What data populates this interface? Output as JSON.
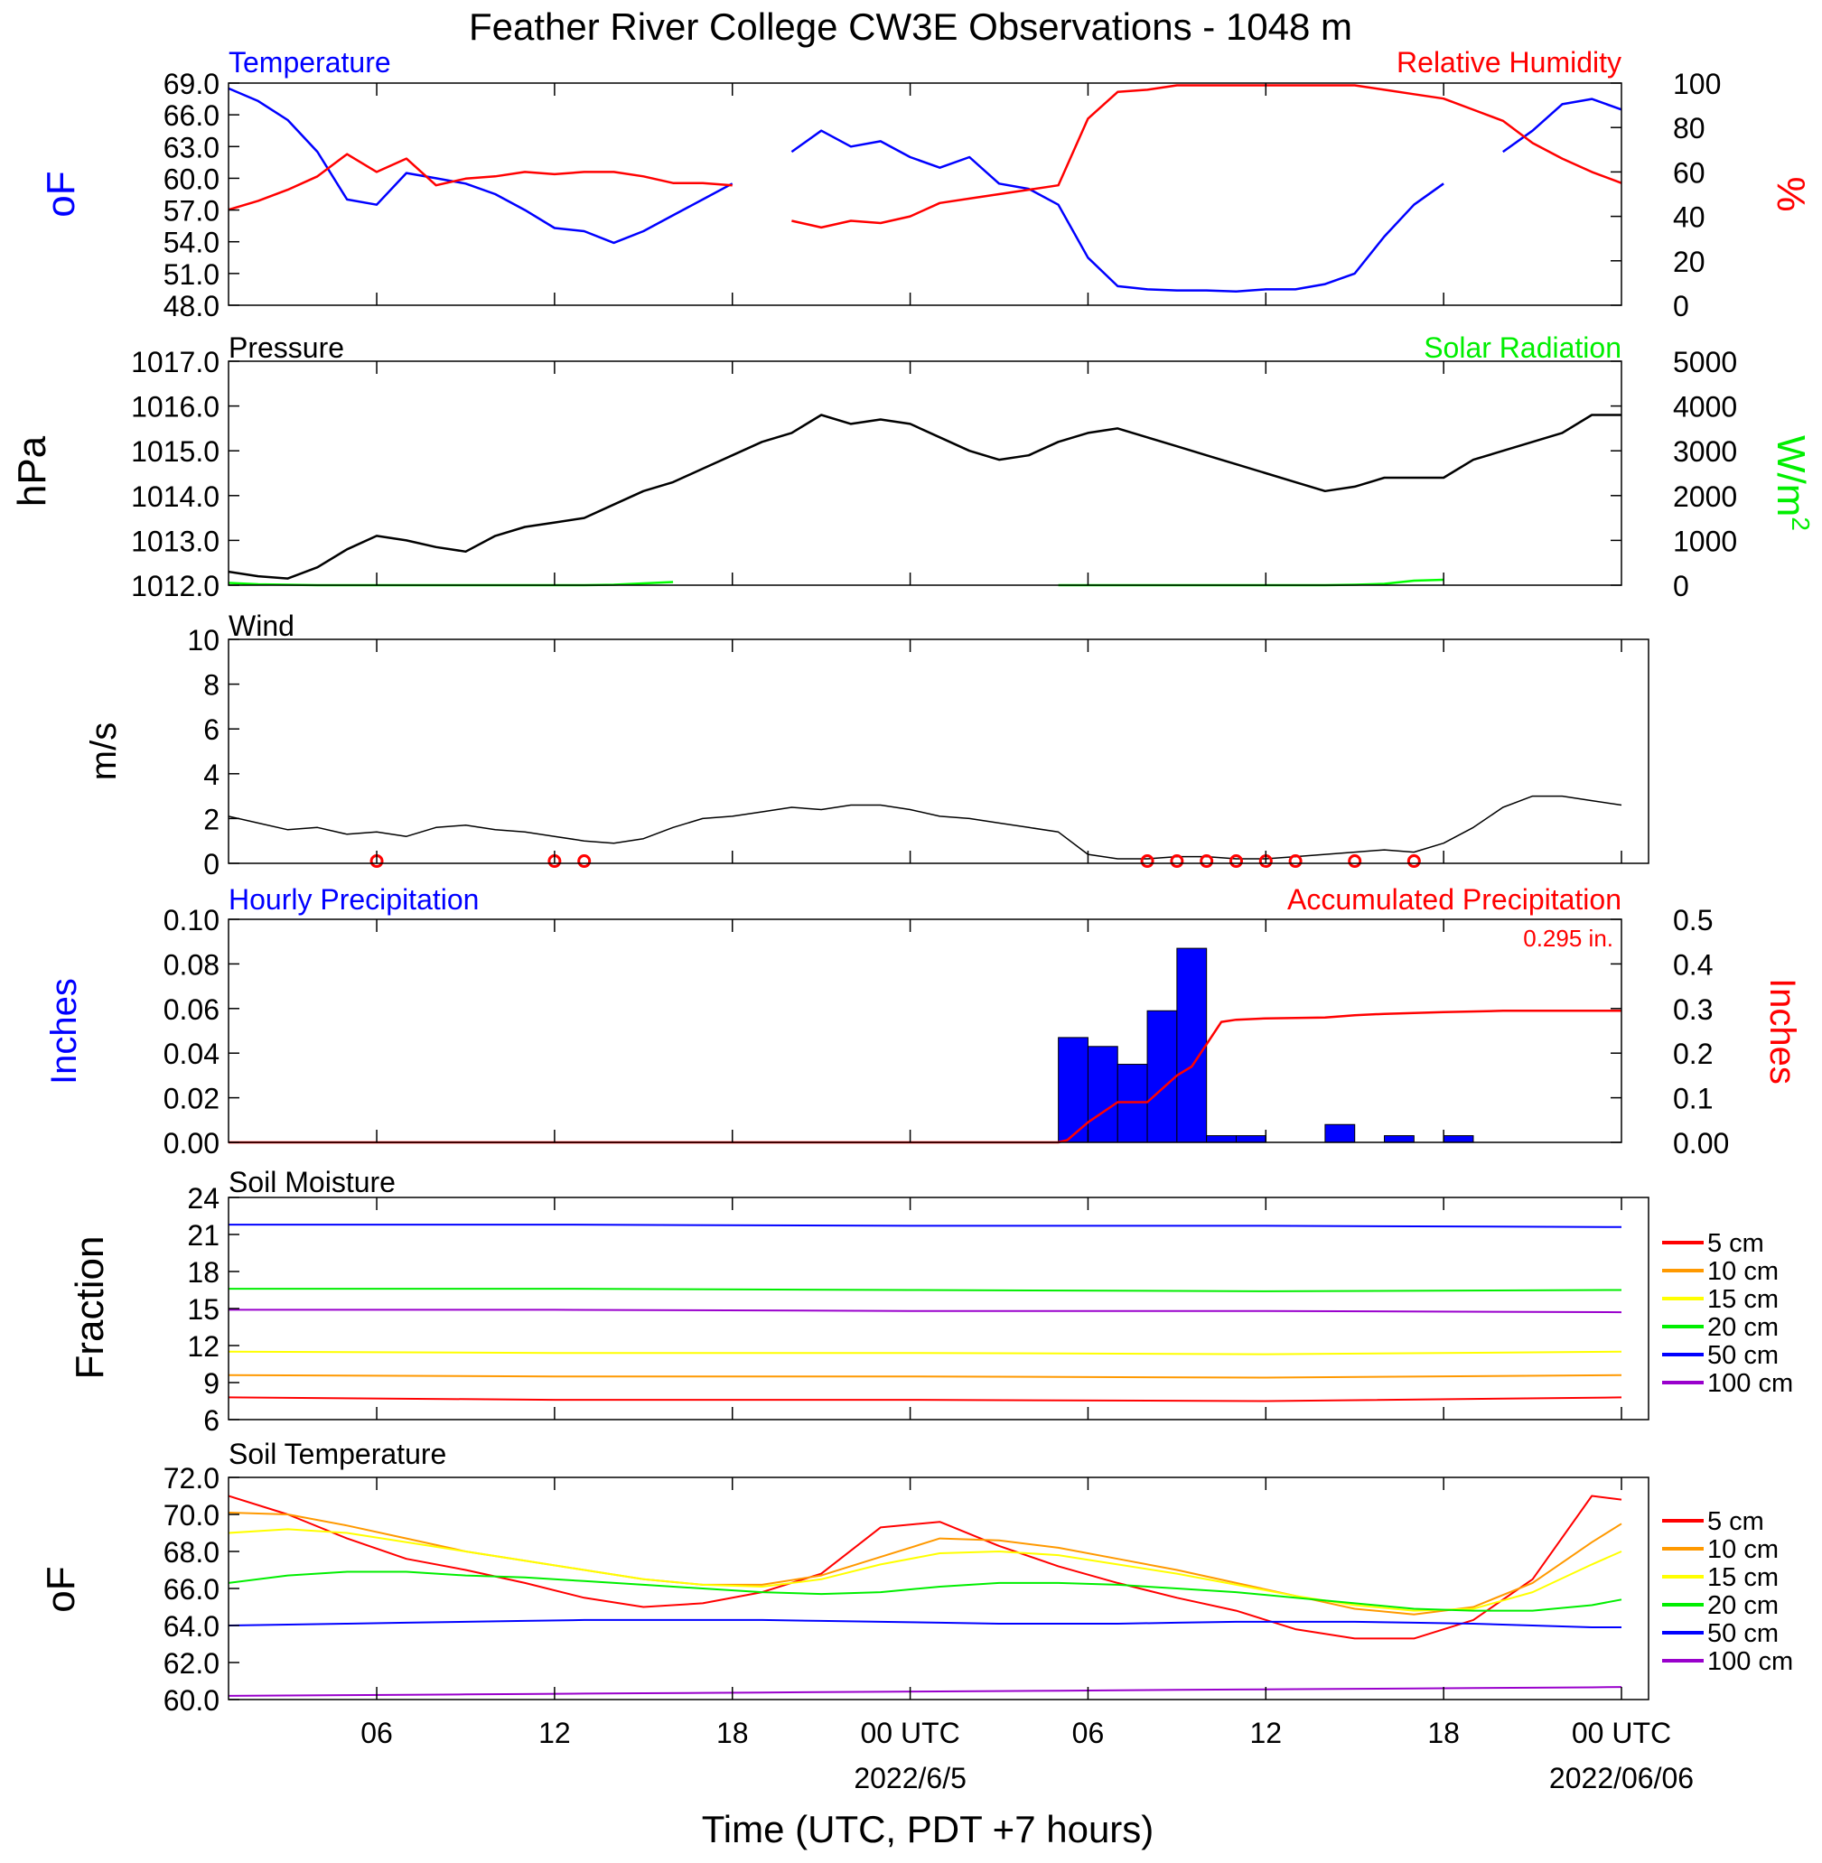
{
  "page_title": "Feather River College CW3E Observations - 1048 m",
  "x_axis": {
    "tick_labels": [
      "06",
      "12",
      "18",
      "00 UTC",
      "06",
      "12",
      "18",
      "00 UTC"
    ],
    "date_labels": [
      "2022/6/5",
      "2022/06/06"
    ],
    "title": "Time (UTC, PDT +7 hours)"
  },
  "colors": {
    "temperature": "#0000ff",
    "humidity": "#ff0000",
    "pressure": "#000000",
    "solar": "#00ff00",
    "wind": "#000000",
    "barb": "#ff0000",
    "precip_bar": "#0000ff",
    "accum": "#ff0000"
  },
  "panels": {
    "temp_rh": {
      "left_title": "Temperature",
      "right_title": "Relative Humidity",
      "left_unit": "oF",
      "right_unit": "%",
      "left_ticks": [
        "69.0",
        "66.0",
        "63.0",
        "60.0",
        "57.0",
        "54.0",
        "51.0",
        "48.0"
      ],
      "right_ticks": [
        "100",
        "80",
        "60",
        "40",
        "20",
        "0"
      ]
    },
    "pressure": {
      "left_title": "Pressure",
      "right_title": "Solar Radiation",
      "left_unit": "hPa",
      "right_unit": "W/m2",
      "left_ticks": [
        "1017.0",
        "1016.0",
        "1015.0",
        "1014.0",
        "1013.0",
        "1012.0"
      ],
      "right_ticks": [
        "5000",
        "4000",
        "3000",
        "2000",
        "1000",
        "0"
      ]
    },
    "wind": {
      "left_title": "Wind",
      "left_unit": "m/s",
      "left_ticks": [
        "10",
        "8",
        "6",
        "4",
        "2",
        "0"
      ]
    },
    "precip": {
      "left_title": "Hourly Precipitation",
      "right_title": "Accumulated Precipitation",
      "total_label": "0.295 in.",
      "left_unit": "Inches",
      "right_unit": "Inches",
      "left_ticks": [
        "0.10",
        "0.08",
        "0.06",
        "0.04",
        "0.02",
        "0.00"
      ],
      "right_ticks": [
        "0.5",
        "0.4",
        "0.3",
        "0.2",
        "0.1",
        "0.00"
      ]
    },
    "soil_moisture": {
      "left_title": "Soil Moisture",
      "left_unit": "Fraction",
      "left_ticks": [
        "24",
        "21",
        "18",
        "15",
        "12",
        "9",
        "6"
      ]
    },
    "soil_temp": {
      "left_title": "Soil Temperature",
      "left_unit": "oF",
      "left_ticks": [
        "72.0",
        "70.0",
        "68.0",
        "66.0",
        "64.0",
        "62.0",
        "60.0"
      ]
    }
  },
  "legend_depths": [
    {
      "label": "5 cm",
      "color": "#ff0000"
    },
    {
      "label": "10 cm",
      "color": "#ff9900"
    },
    {
      "label": "15 cm",
      "color": "#ffff00"
    },
    {
      "label": "20 cm",
      "color": "#00ee00"
    },
    {
      "label": "50 cm",
      "color": "#0000ff"
    },
    {
      "label": "100 cm",
      "color": "#9900cc"
    }
  ],
  "chart_data": [
    {
      "type": "line",
      "name": "temp_rh",
      "x_hours_utc": [
        1,
        2,
        3,
        4,
        5,
        6,
        7,
        8,
        9,
        10,
        11,
        12,
        13,
        14,
        15,
        16,
        17,
        18,
        19,
        20,
        21,
        22,
        23,
        24,
        25,
        26,
        27,
        28,
        29,
        30,
        31,
        32,
        33,
        34,
        35,
        36,
        37,
        38,
        39,
        40,
        41,
        42,
        43,
        44,
        45,
        46,
        47,
        48
      ],
      "series": [
        {
          "name": "Temperature",
          "axis": "left",
          "ylim": [
            48,
            69
          ],
          "values": [
            68.5,
            67.3,
            65.5,
            62.5,
            58.0,
            57.5,
            60.5,
            60.0,
            59.5,
            58.5,
            57.0,
            55.3,
            55.0,
            53.9,
            55.0,
            56.5,
            58.0,
            59.5,
            null,
            62.5,
            64.5,
            63.0,
            63.5,
            62.0,
            61.0,
            62.0,
            59.5,
            59.0,
            57.5,
            52.5,
            49.8,
            49.5,
            49.4,
            49.4,
            49.3,
            49.5,
            49.5,
            50.0,
            51.0,
            54.5,
            57.5,
            59.5,
            null,
            62.5,
            64.5,
            67.0,
            67.5,
            66.5
          ]
        },
        {
          "name": "Relative Humidity",
          "axis": "right",
          "ylim": [
            0,
            100
          ],
          "values": [
            43,
            47,
            52,
            58,
            68,
            60,
            66,
            54,
            57,
            58,
            60,
            59,
            60,
            60,
            58,
            55,
            55,
            54,
            null,
            38,
            35,
            38,
            37,
            40,
            46,
            48,
            50,
            52,
            54,
            84,
            96,
            97,
            99,
            99,
            99,
            99,
            99,
            99,
            99,
            97,
            95,
            93,
            88,
            83,
            73,
            66,
            60,
            55
          ]
        }
      ]
    },
    {
      "type": "line",
      "name": "pressure",
      "x_hours_utc": [
        1,
        2,
        3,
        4,
        5,
        6,
        7,
        8,
        9,
        10,
        11,
        12,
        13,
        14,
        15,
        16,
        17,
        18,
        19,
        20,
        21,
        22,
        23,
        24,
        25,
        26,
        27,
        28,
        29,
        30,
        31,
        32,
        33,
        34,
        35,
        36,
        37,
        38,
        39,
        40,
        41,
        42,
        43,
        44,
        45,
        46,
        47,
        48
      ],
      "series": [
        {
          "name": "Pressure",
          "axis": "left",
          "ylim": [
            1012,
            1017
          ],
          "values": [
            1012.3,
            1012.2,
            1012.15,
            1012.4,
            1012.8,
            1013.1,
            1013.0,
            1012.85,
            1012.75,
            1013.1,
            1013.3,
            1013.4,
            1013.5,
            1013.8,
            1014.1,
            1014.3,
            1014.6,
            1014.9,
            1015.2,
            1015.4,
            1015.8,
            1015.6,
            1015.7,
            1015.6,
            1015.3,
            1015.0,
            1014.8,
            1014.9,
            1015.2,
            1015.4,
            1015.5,
            1015.3,
            1015.1,
            1014.9,
            1014.7,
            1014.5,
            1014.3,
            1014.1,
            1014.2,
            1014.4,
            1014.4,
            1014.4,
            1014.8,
            1015.0,
            1015.2,
            1015.4,
            1015.8,
            1015.8
          ]
        },
        {
          "name": "Solar Radiation",
          "axis": "right",
          "ylim": [
            0,
            5000
          ],
          "values": [
            50,
            20,
            10,
            0,
            0,
            0,
            0,
            0,
            0,
            0,
            0,
            0,
            0,
            10,
            40,
            70,
            null,
            null,
            null,
            null,
            null,
            null,
            null,
            null,
            null,
            null,
            null,
            null,
            0,
            0,
            0,
            0,
            0,
            0,
            0,
            0,
            0,
            0,
            10,
            30,
            100,
            120,
            null,
            null,
            null,
            null,
            null,
            null
          ]
        }
      ]
    },
    {
      "type": "line",
      "name": "wind",
      "ylim": [
        0,
        10
      ],
      "x_hours_utc": [
        1,
        2,
        3,
        4,
        5,
        6,
        7,
        8,
        9,
        10,
        11,
        12,
        13,
        14,
        15,
        16,
        17,
        18,
        19,
        20,
        21,
        22,
        23,
        24,
        25,
        26,
        27,
        28,
        29,
        30,
        31,
        32,
        33,
        34,
        35,
        36,
        37,
        38,
        39,
        40,
        41,
        42,
        43,
        44,
        45,
        46,
        47,
        48
      ],
      "series": [
        {
          "name": "Wind speed",
          "values": [
            2.1,
            1.8,
            1.5,
            1.6,
            1.3,
            1.4,
            1.2,
            1.6,
            1.7,
            1.5,
            1.4,
            1.2,
            1.0,
            0.9,
            1.1,
            1.6,
            2.0,
            2.1,
            2.3,
            2.5,
            2.4,
            2.6,
            2.6,
            2.4,
            2.1,
            2.0,
            1.8,
            1.6,
            1.4,
            0.4,
            0.2,
            0.2,
            0.3,
            0.3,
            0.2,
            0.2,
            0.3,
            0.4,
            0.5,
            0.6,
            0.5,
            0.9,
            1.6,
            2.5,
            3.0,
            3.0,
            2.8,
            2.6
          ]
        }
      ]
    },
    {
      "type": "bar",
      "name": "precip",
      "x_hours_utc": [
        30,
        31,
        32,
        33,
        34,
        35,
        36,
        37,
        38,
        39,
        40,
        41,
        42,
        43
      ],
      "series": [
        {
          "name": "Hourly Precipitation",
          "axis": "left",
          "ylim": [
            0,
            0.1
          ],
          "values": [
            0.047,
            0.043,
            0.035,
            0.059,
            0.087,
            0.003,
            0.003,
            0,
            0,
            0.008,
            0,
            0.003,
            0,
            0.003
          ]
        },
        {
          "name": "Accumulated Precipitation",
          "axis": "right",
          "ylim": [
            0,
            0.5
          ],
          "type": "line",
          "x_hours_utc": [
            1,
            29,
            29.3,
            30,
            31,
            32,
            33,
            33.5,
            34,
            34.5,
            35,
            36,
            38,
            39,
            40,
            42,
            44,
            48
          ],
          "values": [
            0,
            0,
            0.005,
            0.045,
            0.09,
            0.09,
            0.15,
            0.17,
            0.22,
            0.27,
            0.275,
            0.278,
            0.28,
            0.285,
            0.288,
            0.292,
            0.295,
            0.295
          ]
        }
      ]
    },
    {
      "type": "line",
      "name": "soil_moisture",
      "ylim": [
        6,
        24
      ],
      "x_hours_utc": [
        1,
        12,
        24,
        36,
        48
      ],
      "series": [
        {
          "name": "5 cm",
          "values": [
            7.8,
            7.6,
            7.6,
            7.5,
            7.8
          ]
        },
        {
          "name": "10 cm",
          "values": [
            9.6,
            9.5,
            9.5,
            9.4,
            9.6
          ]
        },
        {
          "name": "15 cm",
          "values": [
            11.5,
            11.4,
            11.4,
            11.3,
            11.5
          ]
        },
        {
          "name": "20 cm",
          "values": [
            16.6,
            16.6,
            16.5,
            16.4,
            16.5
          ]
        },
        {
          "name": "50 cm",
          "values": [
            21.8,
            21.8,
            21.7,
            21.7,
            21.6
          ]
        },
        {
          "name": "100 cm",
          "values": [
            14.9,
            14.9,
            14.8,
            14.8,
            14.7
          ]
        }
      ]
    },
    {
      "type": "line",
      "name": "soil_temp",
      "ylim": [
        60,
        72
      ],
      "x_hours_utc": [
        1,
        3,
        5,
        7,
        9,
        11,
        13,
        15,
        17,
        19,
        21,
        23,
        25,
        27,
        29,
        31,
        33,
        35,
        37,
        39,
        41,
        43,
        45,
        47,
        48
      ],
      "series": [
        {
          "name": "5 cm",
          "values": [
            71.0,
            70.0,
            68.7,
            67.6,
            67.0,
            66.3,
            65.5,
            65.0,
            65.2,
            65.8,
            66.8,
            69.3,
            69.6,
            68.3,
            67.2,
            66.3,
            65.5,
            64.8,
            63.8,
            63.3,
            63.3,
            64.3,
            66.5,
            71.0,
            70.8
          ]
        },
        {
          "name": "10 cm",
          "values": [
            70.1,
            70.0,
            69.4,
            68.7,
            68.0,
            67.5,
            67.0,
            66.5,
            66.2,
            66.2,
            66.7,
            67.7,
            68.7,
            68.6,
            68.2,
            67.6,
            67.0,
            66.3,
            65.6,
            64.9,
            64.6,
            65.0,
            66.3,
            68.5,
            69.5
          ]
        },
        {
          "name": "15 cm",
          "values": [
            69.0,
            69.2,
            69.0,
            68.5,
            68.0,
            67.5,
            67.0,
            66.5,
            66.2,
            66.1,
            66.5,
            67.3,
            67.9,
            68.0,
            67.8,
            67.3,
            66.8,
            66.2,
            65.6,
            65.1,
            64.8,
            64.9,
            65.8,
            67.3,
            68.0
          ]
        },
        {
          "name": "20 cm",
          "values": [
            66.3,
            66.7,
            66.9,
            66.9,
            66.7,
            66.6,
            66.4,
            66.2,
            66.0,
            65.8,
            65.7,
            65.8,
            66.1,
            66.3,
            66.3,
            66.2,
            66.0,
            65.8,
            65.5,
            65.2,
            64.9,
            64.8,
            64.8,
            65.1,
            65.4
          ]
        },
        {
          "name": "50 cm",
          "values": [
            64.0,
            64.05,
            64.1,
            64.15,
            64.2,
            64.25,
            64.3,
            64.3,
            64.3,
            64.3,
            64.25,
            64.2,
            64.15,
            64.1,
            64.1,
            64.1,
            64.15,
            64.2,
            64.2,
            64.2,
            64.15,
            64.1,
            64.0,
            63.9,
            63.9
          ]
        },
        {
          "name": "100 cm",
          "values": [
            60.2,
            60.22,
            60.24,
            60.26,
            60.28,
            60.3,
            60.32,
            60.34,
            60.36,
            60.38,
            60.4,
            60.42,
            60.44,
            60.46,
            60.48,
            60.5,
            60.52,
            60.54,
            60.56,
            60.58,
            60.6,
            60.62,
            60.64,
            60.66,
            60.68
          ]
        }
      ]
    }
  ]
}
